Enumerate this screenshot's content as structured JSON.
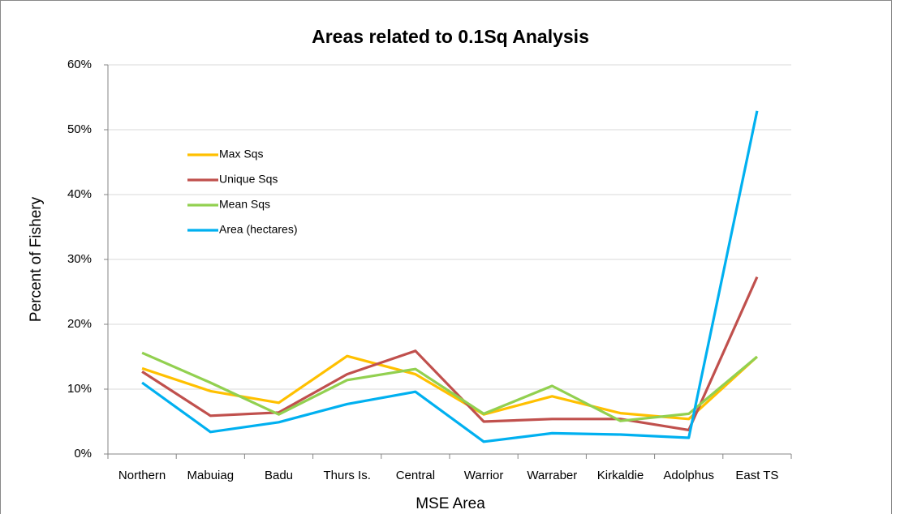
{
  "chart_data": {
    "type": "line",
    "title": "Areas related to 0.1Sq Analysis",
    "x_label": "MSE Area",
    "y_label": "Percent of Fishery",
    "categories": [
      "Northern",
      "Mabuiag",
      "Badu",
      "Thurs Is.",
      "Central",
      "Warrior",
      "Warraber",
      "Kirkaldie",
      "Adolphus",
      "East TS"
    ],
    "series": [
      {
        "name": "Max Sqs",
        "color": "#ffc000",
        "values": [
          13.2,
          9.7,
          7.9,
          15.1,
          12.3,
          6.1,
          8.9,
          6.3,
          5.4,
          15.0
        ]
      },
      {
        "name": "Unique Sqs",
        "color": "#c0504d",
        "values": [
          12.7,
          5.9,
          6.4,
          12.3,
          15.9,
          5.0,
          5.4,
          5.4,
          3.7,
          27.3
        ]
      },
      {
        "name": "Mean Sqs",
        "color": "#92d050",
        "values": [
          15.6,
          11.0,
          6.1,
          11.4,
          13.1,
          6.2,
          10.5,
          5.1,
          6.2,
          15.0
        ]
      },
      {
        "name": "Area (hectares)",
        "color": "#00b0f0",
        "values": [
          11.0,
          3.4,
          4.9,
          7.7,
          9.6,
          1.9,
          3.2,
          3.0,
          2.5,
          52.9
        ]
      }
    ],
    "ylim": [
      0,
      60
    ],
    "yticks": [
      {
        "value": 0,
        "label": "0%"
      },
      {
        "value": 10,
        "label": "10%"
      },
      {
        "value": 20,
        "label": "20%"
      },
      {
        "value": 30,
        "label": "30%"
      },
      {
        "value": 40,
        "label": "40%"
      },
      {
        "value": 50,
        "label": "50%"
      },
      {
        "value": 60,
        "label": "60%"
      }
    ],
    "grid": true
  }
}
